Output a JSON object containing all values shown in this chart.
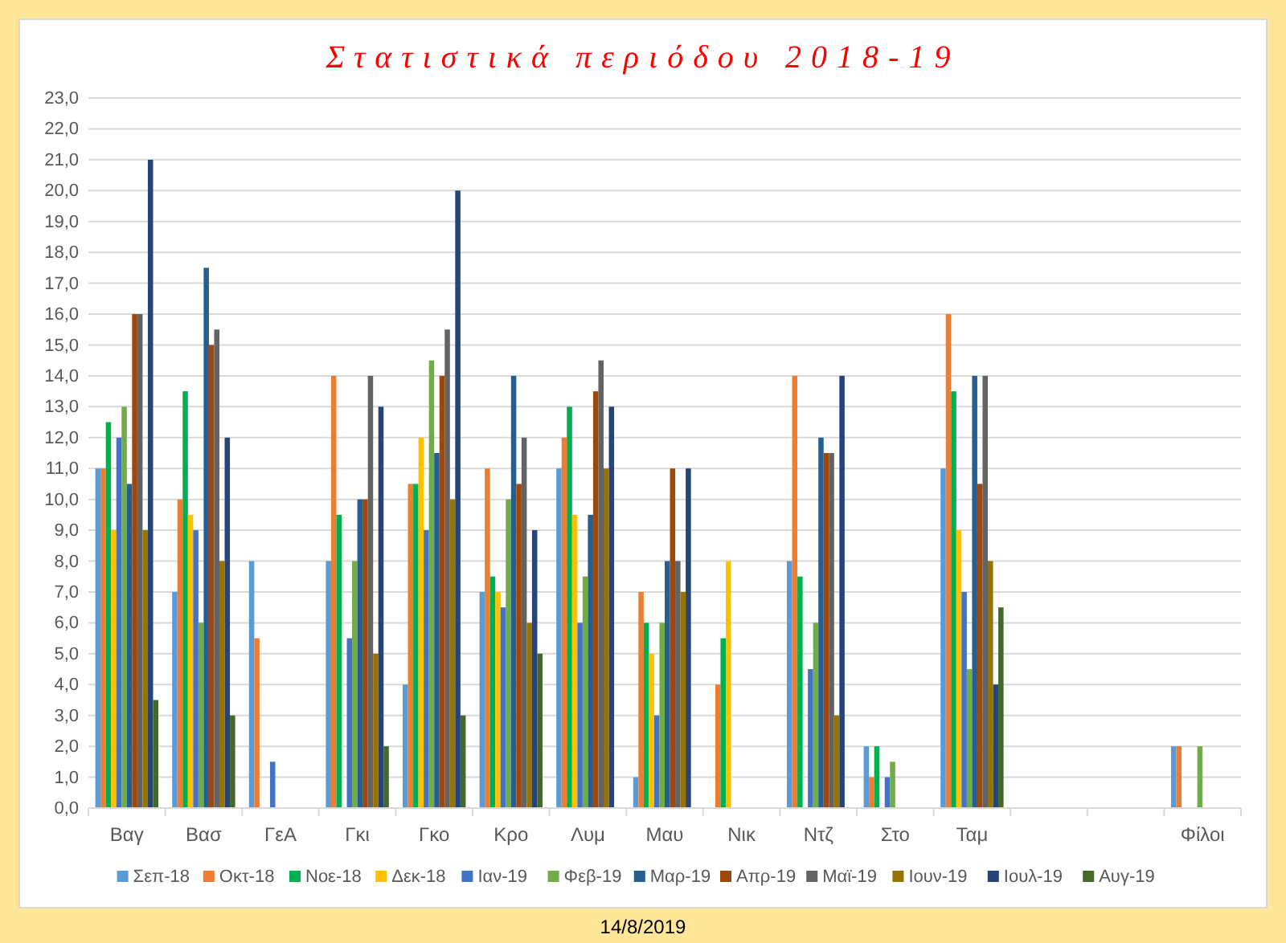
{
  "chart_data": {
    "type": "bar",
    "title": "Στατιστικά περιόδου 2018-19",
    "categories": [
      "Βαγ",
      "Βασ",
      "ΓεΑ",
      "Γκι",
      "Γκο",
      "Κρο",
      "Λυμ",
      "Μαυ",
      "Νικ",
      "Ντζ",
      "Στο",
      "Ταμ",
      null,
      null,
      "Φίλοι"
    ],
    "series": [
      {
        "name": "Σεπ-18",
        "color": "#5b9bd5",
        "values": [
          11,
          7,
          8,
          8,
          4,
          7,
          11,
          1,
          null,
          8,
          2,
          11,
          null,
          null,
          2
        ]
      },
      {
        "name": "Οκτ-18",
        "color": "#ed7d31",
        "values": [
          11,
          10,
          5.5,
          14,
          10.5,
          11,
          12,
          7,
          4,
          14,
          1,
          16,
          null,
          null,
          2
        ]
      },
      {
        "name": "Νοε-18",
        "color": "#00b050",
        "values": [
          12.5,
          13.5,
          null,
          9.5,
          10.5,
          7.5,
          13,
          6,
          5.5,
          7.5,
          2,
          13.5,
          null,
          null,
          null
        ]
      },
      {
        "name": "Δεκ-18",
        "color": "#ffc000",
        "values": [
          9,
          9.5,
          null,
          null,
          12,
          7,
          9.5,
          5,
          8,
          null,
          null,
          9,
          null,
          null,
          null
        ]
      },
      {
        "name": "Ιαν-19",
        "color": "#4472c4",
        "values": [
          12,
          9,
          1.5,
          5.5,
          9,
          6.5,
          6,
          3,
          null,
          4.5,
          1,
          7,
          null,
          null,
          null
        ]
      },
      {
        "name": "Φεβ-19",
        "color": "#70ad47",
        "values": [
          13,
          6,
          null,
          8,
          14.5,
          10,
          7.5,
          6,
          null,
          6,
          1.5,
          4.5,
          null,
          null,
          2
        ]
      },
      {
        "name": "Μαρ-19",
        "color": "#255e91",
        "values": [
          10.5,
          17.5,
          null,
          10,
          11.5,
          14,
          9.5,
          8,
          null,
          12,
          null,
          14,
          null,
          null,
          null
        ]
      },
      {
        "name": "Απρ-19",
        "color": "#9e480e",
        "values": [
          16,
          15,
          null,
          10,
          14,
          10.5,
          13.5,
          11,
          null,
          11.5,
          null,
          10.5,
          null,
          null,
          null
        ]
      },
      {
        "name": "Μαϊ-19",
        "color": "#636363",
        "values": [
          16,
          15.5,
          null,
          14,
          15.5,
          12,
          14.5,
          8,
          null,
          11.5,
          null,
          14,
          null,
          null,
          null
        ]
      },
      {
        "name": "Ιουν-19",
        "color": "#997300",
        "values": [
          9,
          8,
          null,
          5,
          10,
          6,
          11,
          7,
          null,
          3,
          null,
          8,
          null,
          null,
          null
        ]
      },
      {
        "name": "Ιουλ-19",
        "color": "#264478",
        "values": [
          21,
          12,
          null,
          13,
          20,
          9,
          13,
          11,
          null,
          14,
          null,
          4,
          null,
          null,
          null
        ]
      },
      {
        "name": "Αυγ-19",
        "color": "#43682b",
        "values": [
          3.5,
          3,
          null,
          2,
          3,
          5,
          null,
          null,
          null,
          null,
          null,
          6.5,
          null,
          null,
          null
        ]
      }
    ],
    "ylim": [
      0,
      23
    ],
    "yticks": [
      {
        "value": 0,
        "label": "0,0"
      },
      {
        "value": 1,
        "label": "1,0"
      },
      {
        "value": 2,
        "label": "2,0"
      },
      {
        "value": 3,
        "label": "3,0"
      },
      {
        "value": 4,
        "label": "4,0"
      },
      {
        "value": 5,
        "label": "5,0"
      },
      {
        "value": 6,
        "label": "6,0"
      },
      {
        "value": 7,
        "label": "7,0"
      },
      {
        "value": 8,
        "label": "8,0"
      },
      {
        "value": 9,
        "label": "9,0"
      },
      {
        "value": 10,
        "label": "10,0"
      },
      {
        "value": 11,
        "label": "11,0"
      },
      {
        "value": 12,
        "label": "12,0"
      },
      {
        "value": 13,
        "label": "13,0"
      },
      {
        "value": 14,
        "label": "14,0"
      },
      {
        "value": 15,
        "label": "15,0"
      },
      {
        "value": 16,
        "label": "16,0"
      },
      {
        "value": 17,
        "label": "17,0"
      },
      {
        "value": 18,
        "label": "18,0"
      },
      {
        "value": 19,
        "label": "19,0"
      },
      {
        "value": 20,
        "label": "20,0"
      },
      {
        "value": 21,
        "label": "21,0"
      },
      {
        "value": 22,
        "label": "22,0"
      },
      {
        "value": 23,
        "label": "23,0"
      }
    ],
    "grid": "y",
    "legend": "bottom",
    "annotations": [
      "14/8/2019"
    ]
  }
}
